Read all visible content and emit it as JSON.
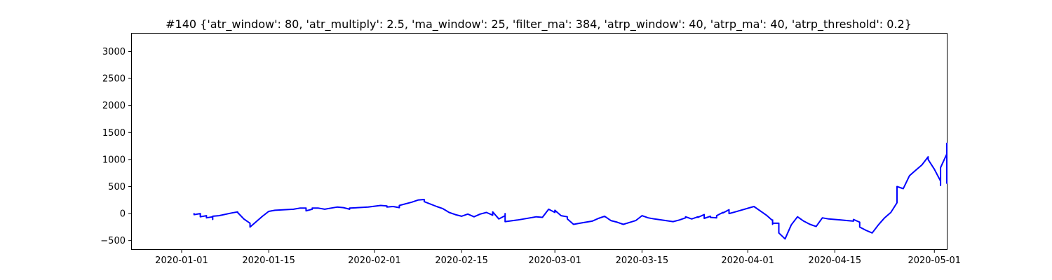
{
  "chart_data": {
    "type": "line",
    "title": "#140 {'atr_window': 80, 'atr_multiply': 2.5, 'ma_window': 25, 'filter_ma': 384, 'atrp_window': 40, 'atrp_ma': 40, 'atrp_threshold': 0.2}",
    "xlabel": "",
    "ylabel": "",
    "grid": false,
    "legend": "none",
    "xlim": [
      "2019-12-24",
      "2020-05-03"
    ],
    "ylim": [
      -660,
      3330
    ],
    "x_ticks": [
      "2020-01-01",
      "2020-01-15",
      "2020-02-01",
      "2020-02-15",
      "2020-03-01",
      "2020-03-15",
      "2020-04-01",
      "2020-04-15",
      "2020-05-01"
    ],
    "y_ticks": [
      -500,
      0,
      500,
      1000,
      1500,
      2000,
      2500,
      3000
    ],
    "series": [
      {
        "name": "",
        "color": "#0000ff",
        "points": [
          [
            "2020-01-03",
            0
          ],
          [
            "2020-01-03",
            -20
          ],
          [
            "2020-01-04",
            0
          ],
          [
            "2020-01-04",
            -60
          ],
          [
            "2020-01-05",
            -40
          ],
          [
            "2020-01-05",
            -80
          ],
          [
            "2020-01-06",
            -60
          ],
          [
            "2020-01-06",
            -110
          ],
          [
            "2020-01-06",
            -50
          ],
          [
            "2020-01-07",
            -40
          ],
          [
            "2020-01-09",
            10
          ],
          [
            "2020-01-10",
            30
          ],
          [
            "2020-01-10",
            20
          ],
          [
            "2020-01-11",
            -100
          ],
          [
            "2020-01-12",
            -180
          ],
          [
            "2020-01-12",
            -250
          ],
          [
            "2020-01-14",
            -50
          ],
          [
            "2020-01-15",
            40
          ],
          [
            "2020-01-16",
            60
          ],
          [
            "2020-01-19",
            80
          ],
          [
            "2020-01-20",
            100
          ],
          [
            "2020-01-21",
            100
          ],
          [
            "2020-01-21",
            50
          ],
          [
            "2020-01-22",
            80
          ],
          [
            "2020-01-22",
            100
          ],
          [
            "2020-01-23",
            100
          ],
          [
            "2020-01-24",
            80
          ],
          [
            "2020-01-25",
            100
          ],
          [
            "2020-01-26",
            120
          ],
          [
            "2020-01-27",
            110
          ],
          [
            "2020-01-28",
            80
          ],
          [
            "2020-01-28",
            100
          ],
          [
            "2020-01-31",
            120
          ],
          [
            "2020-02-02",
            150
          ],
          [
            "2020-02-03",
            140
          ],
          [
            "2020-02-03",
            120
          ],
          [
            "2020-02-04",
            130
          ],
          [
            "2020-02-05",
            110
          ],
          [
            "2020-02-05",
            150
          ],
          [
            "2020-02-07",
            210
          ],
          [
            "2020-02-08",
            250
          ],
          [
            "2020-02-09",
            260
          ],
          [
            "2020-02-09",
            220
          ],
          [
            "2020-02-11",
            130
          ],
          [
            "2020-02-12",
            90
          ],
          [
            "2020-02-13",
            20
          ],
          [
            "2020-02-14",
            -20
          ],
          [
            "2020-02-15",
            -50
          ],
          [
            "2020-02-16",
            -10
          ],
          [
            "2020-02-17",
            -60
          ],
          [
            "2020-02-18",
            -10
          ],
          [
            "2020-02-19",
            20
          ],
          [
            "2020-02-20",
            -30
          ],
          [
            "2020-02-20",
            30
          ],
          [
            "2020-02-21",
            -100
          ],
          [
            "2020-02-22",
            -40
          ],
          [
            "2020-02-22",
            0
          ],
          [
            "2020-02-22",
            -150
          ],
          [
            "2020-02-24",
            -120
          ],
          [
            "2020-02-27",
            -60
          ],
          [
            "2020-02-28",
            -70
          ],
          [
            "2020-02-29",
            80
          ],
          [
            "2020-03-01",
            20
          ],
          [
            "2020-03-01",
            60
          ],
          [
            "2020-03-02",
            -40
          ],
          [
            "2020-03-03",
            -60
          ],
          [
            "2020-03-03",
            -100
          ],
          [
            "2020-03-04",
            -200
          ],
          [
            "2020-03-05",
            -180
          ],
          [
            "2020-03-07",
            -140
          ],
          [
            "2020-03-08",
            -90
          ],
          [
            "2020-03-09",
            -50
          ],
          [
            "2020-03-10",
            -130
          ],
          [
            "2020-03-11",
            -160
          ],
          [
            "2020-03-12",
            -200
          ],
          [
            "2020-03-14",
            -130
          ],
          [
            "2020-03-15",
            -40
          ],
          [
            "2020-03-16",
            -80
          ],
          [
            "2020-03-17",
            -100
          ],
          [
            "2020-03-20",
            -150
          ],
          [
            "2020-03-21",
            -120
          ],
          [
            "2020-03-22",
            -80
          ],
          [
            "2020-03-22",
            -60
          ],
          [
            "2020-03-23",
            -100
          ],
          [
            "2020-03-24",
            -60
          ],
          [
            "2020-03-24",
            -70
          ],
          [
            "2020-03-25",
            -20
          ],
          [
            "2020-03-25",
            -90
          ],
          [
            "2020-03-26",
            -50
          ],
          [
            "2020-03-26",
            -70
          ],
          [
            "2020-03-27",
            -80
          ],
          [
            "2020-03-27",
            -60
          ],
          [
            "2020-03-27",
            -40
          ],
          [
            "2020-03-28",
            20
          ],
          [
            "2020-03-28",
            10
          ],
          [
            "2020-03-29",
            70
          ],
          [
            "2020-03-29",
            0
          ],
          [
            "2020-03-30",
            30
          ],
          [
            "2020-04-02",
            130
          ],
          [
            "2020-04-03",
            50
          ],
          [
            "2020-04-04",
            -30
          ],
          [
            "2020-04-05",
            -130
          ],
          [
            "2020-04-05",
            -200
          ],
          [
            "2020-04-05",
            -120
          ],
          [
            "2020-04-05",
            -180
          ],
          [
            "2020-04-06",
            -180
          ],
          [
            "2020-04-06",
            -360
          ],
          [
            "2020-04-07",
            -470
          ],
          [
            "2020-04-08",
            -210
          ],
          [
            "2020-04-09",
            -60
          ],
          [
            "2020-04-10",
            -140
          ],
          [
            "2020-04-11",
            -200
          ],
          [
            "2020-04-12",
            -240
          ],
          [
            "2020-04-13",
            -80
          ],
          [
            "2020-04-14",
            -100
          ],
          [
            "2020-04-16",
            -120
          ],
          [
            "2020-04-17",
            -130
          ],
          [
            "2020-04-18",
            -140
          ],
          [
            "2020-04-18",
            -110
          ],
          [
            "2020-04-19",
            -160
          ],
          [
            "2020-04-19",
            -250
          ],
          [
            "2020-04-20",
            -310
          ],
          [
            "2020-04-21",
            -360
          ],
          [
            "2020-04-22",
            -210
          ],
          [
            "2020-04-23",
            -80
          ],
          [
            "2020-04-24",
            20
          ],
          [
            "2020-04-25",
            200
          ],
          [
            "2020-04-25",
            500
          ],
          [
            "2020-04-26",
            460
          ],
          [
            "2020-04-27",
            700
          ],
          [
            "2020-04-28",
            800
          ],
          [
            "2020-04-29",
            900
          ],
          [
            "2020-04-30",
            1050
          ],
          [
            "2020-04-30",
            1000
          ],
          [
            "2020-05-01",
            820
          ],
          [
            "2020-05-02",
            600
          ],
          [
            "2020-05-02",
            560
          ],
          [
            "2020-05-02",
            520
          ],
          [
            "2020-05-02",
            850
          ],
          [
            "2020-05-03",
            1100
          ],
          [
            "2020-05-03",
            1300
          ],
          [
            "2020-05-03",
            950
          ],
          [
            "2020-05-03",
            880
          ],
          [
            "2020-05-03",
            820
          ],
          [
            "2020-05-03",
            1000
          ],
          [
            "2020-05-03",
            830
          ],
          [
            "2020-05-03",
            1100
          ],
          [
            "2020-05-03",
            560
          ]
        ]
      }
    ]
  }
}
